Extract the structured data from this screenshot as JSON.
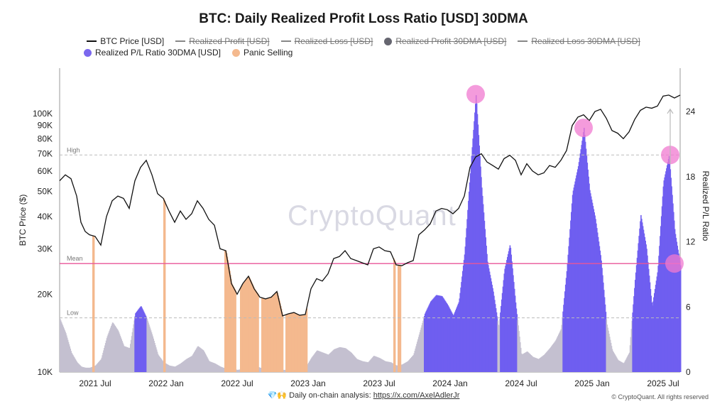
{
  "chart_data": {
    "type": "bar",
    "title": "BTC: Daily Realized Profit Loss Ratio [USD] 30DMA",
    "ylabel_left": "BTC Price ($)",
    "ylabel_right": "Realized P/L Ratio",
    "y_left_scale": "log",
    "y_left_range": [
      10000,
      150000
    ],
    "y_left_ticks": [
      "100K",
      "90K",
      "80K",
      "70K",
      "60K",
      "50K",
      "40K",
      "30K",
      "20K",
      "10K"
    ],
    "y_left_tick_values": [
      100000,
      90000,
      80000,
      70000,
      60000,
      50000,
      40000,
      30000,
      20000,
      10000
    ],
    "y_right_range": [
      0,
      28
    ],
    "y_right_ticks": [
      "24",
      "18",
      "12",
      "6",
      "0"
    ],
    "y_right_tick_values": [
      24,
      18,
      12,
      6,
      0
    ],
    "x_range": [
      2021.25,
      2025.62
    ],
    "x_ticks": [
      "2021 Jul",
      "2022 Jan",
      "2022 Jul",
      "2023 Jan",
      "2023 Jul",
      "2024 Jan",
      "2024 Jul",
      "2025 Jan",
      "2025 Jul"
    ],
    "x_tick_values": [
      2021.5,
      2022.0,
      2022.5,
      2023.0,
      2023.5,
      2024.0,
      2024.5,
      2025.0,
      2025.5
    ],
    "reference_lines": [
      {
        "label": "High",
        "value": 20
      },
      {
        "label": "Mean",
        "value": 10
      },
      {
        "label": "Low",
        "value": 5
      }
    ],
    "legend": [
      {
        "name": "BTC Price [USD]",
        "kind": "line",
        "color": "#111111",
        "active": true
      },
      {
        "name": "Realized Profit [USD]",
        "kind": "line",
        "color": "#888888",
        "active": false
      },
      {
        "name": "Realized Loss [USD]",
        "kind": "line",
        "color": "#888888",
        "active": false
      },
      {
        "name": "Realized Profit 30DMA [USD]",
        "kind": "dot",
        "color": "#666670",
        "active": false
      },
      {
        "name": "Realized Loss 30DMA [USD]",
        "kind": "line",
        "color": "#888888",
        "active": false
      },
      {
        "name": "Realized P/L Ratio 30DMA [USD]",
        "kind": "dot",
        "color": "#7b68ee",
        "active": true
      },
      {
        "name": "Panic Selling",
        "kind": "dot",
        "color": "#f4b98e",
        "active": true
      }
    ],
    "colors": {
      "price": "#111111",
      "ratio_low": "#c4c0d0",
      "ratio_high": "#6f5ef0",
      "panic": "#f4b98e",
      "ref_line": "#bbbbbb",
      "mean_line": "#e8559a",
      "highlight": "#f07ad0"
    },
    "price_series": [
      [
        2021.25,
        55000
      ],
      [
        2021.29,
        58000
      ],
      [
        2021.33,
        56000
      ],
      [
        2021.37,
        48000
      ],
      [
        2021.4,
        38000
      ],
      [
        2021.43,
        35000
      ],
      [
        2021.46,
        34000
      ],
      [
        2021.5,
        33500
      ],
      [
        2021.54,
        31000
      ],
      [
        2021.58,
        40000
      ],
      [
        2021.62,
        46000
      ],
      [
        2021.66,
        48000
      ],
      [
        2021.7,
        47000
      ],
      [
        2021.74,
        43000
      ],
      [
        2021.78,
        55000
      ],
      [
        2021.82,
        62000
      ],
      [
        2021.86,
        66000
      ],
      [
        2021.9,
        58000
      ],
      [
        2021.94,
        49000
      ],
      [
        2021.98,
        47000
      ],
      [
        2022.02,
        42000
      ],
      [
        2022.06,
        38000
      ],
      [
        2022.1,
        42000
      ],
      [
        2022.14,
        39000
      ],
      [
        2022.18,
        41000
      ],
      [
        2022.22,
        46000
      ],
      [
        2022.26,
        43000
      ],
      [
        2022.3,
        39000
      ],
      [
        2022.34,
        37000
      ],
      [
        2022.38,
        30000
      ],
      [
        2022.42,
        29500
      ],
      [
        2022.46,
        22000
      ],
      [
        2022.5,
        20000
      ],
      [
        2022.54,
        22000
      ],
      [
        2022.58,
        23500
      ],
      [
        2022.62,
        21000
      ],
      [
        2022.66,
        19500
      ],
      [
        2022.7,
        19200
      ],
      [
        2022.74,
        19500
      ],
      [
        2022.78,
        20500
      ],
      [
        2022.82,
        16500
      ],
      [
        2022.86,
        16800
      ],
      [
        2022.9,
        17000
      ],
      [
        2022.94,
        16600
      ],
      [
        2022.98,
        16700
      ],
      [
        2023.02,
        21000
      ],
      [
        2023.06,
        23000
      ],
      [
        2023.1,
        22500
      ],
      [
        2023.14,
        24000
      ],
      [
        2023.18,
        27500
      ],
      [
        2023.22,
        28000
      ],
      [
        2023.26,
        29500
      ],
      [
        2023.3,
        27500
      ],
      [
        2023.34,
        27000
      ],
      [
        2023.38,
        26500
      ],
      [
        2023.42,
        26000
      ],
      [
        2023.46,
        30000
      ],
      [
        2023.5,
        30500
      ],
      [
        2023.54,
        29500
      ],
      [
        2023.58,
        29200
      ],
      [
        2023.62,
        26000
      ],
      [
        2023.66,
        25800
      ],
      [
        2023.7,
        26500
      ],
      [
        2023.74,
        27000
      ],
      [
        2023.78,
        34000
      ],
      [
        2023.82,
        35500
      ],
      [
        2023.86,
        37500
      ],
      [
        2023.9,
        42000
      ],
      [
        2023.94,
        43000
      ],
      [
        2023.98,
        42500
      ],
      [
        2024.02,
        41000
      ],
      [
        2024.06,
        43000
      ],
      [
        2024.1,
        48000
      ],
      [
        2024.14,
        62000
      ],
      [
        2024.18,
        68000
      ],
      [
        2024.22,
        70000
      ],
      [
        2024.26,
        65000
      ],
      [
        2024.3,
        63000
      ],
      [
        2024.34,
        61000
      ],
      [
        2024.38,
        67000
      ],
      [
        2024.42,
        69000
      ],
      [
        2024.46,
        66000
      ],
      [
        2024.5,
        58000
      ],
      [
        2024.54,
        64000
      ],
      [
        2024.58,
        60000
      ],
      [
        2024.62,
        58000
      ],
      [
        2024.66,
        59000
      ],
      [
        2024.7,
        63000
      ],
      [
        2024.74,
        62000
      ],
      [
        2024.78,
        66000
      ],
      [
        2024.82,
        72000
      ],
      [
        2024.86,
        90000
      ],
      [
        2024.9,
        97000
      ],
      [
        2024.94,
        99000
      ],
      [
        2024.98,
        94000
      ],
      [
        2025.02,
        102000
      ],
      [
        2025.06,
        104000
      ],
      [
        2025.1,
        96000
      ],
      [
        2025.14,
        86000
      ],
      [
        2025.18,
        84000
      ],
      [
        2025.22,
        80000
      ],
      [
        2025.26,
        85000
      ],
      [
        2025.3,
        95000
      ],
      [
        2025.34,
        103000
      ],
      [
        2025.38,
        106000
      ],
      [
        2025.42,
        105000
      ],
      [
        2025.46,
        107000
      ],
      [
        2025.5,
        117000
      ],
      [
        2025.54,
        118000
      ],
      [
        2025.58,
        115000
      ],
      [
        2025.62,
        118000
      ]
    ],
    "ratio_series": [
      [
        2021.25,
        4.9
      ],
      [
        2021.29,
        3.6
      ],
      [
        2021.33,
        1.8
      ],
      [
        2021.37,
        0.9
      ],
      [
        2021.4,
        0.5
      ],
      [
        2021.43,
        0.4
      ],
      [
        2021.46,
        0.4
      ],
      [
        2021.5,
        0.6
      ],
      [
        2021.54,
        1.2
      ],
      [
        2021.58,
        3.2
      ],
      [
        2021.62,
        4.6
      ],
      [
        2021.66,
        3.8
      ],
      [
        2021.7,
        2.4
      ],
      [
        2021.74,
        2.2
      ],
      [
        2021.78,
        5.4
      ],
      [
        2021.82,
        6.1
      ],
      [
        2021.86,
        5.0
      ],
      [
        2021.9,
        3.4
      ],
      [
        2021.94,
        1.6
      ],
      [
        2021.98,
        0.9
      ],
      [
        2022.02,
        0.6
      ],
      [
        2022.06,
        0.5
      ],
      [
        2022.1,
        0.8
      ],
      [
        2022.14,
        1.2
      ],
      [
        2022.18,
        1.5
      ],
      [
        2022.22,
        2.4
      ],
      [
        2022.26,
        2.0
      ],
      [
        2022.3,
        1.0
      ],
      [
        2022.34,
        0.8
      ],
      [
        2022.38,
        0.5
      ],
      [
        2022.42,
        0.3
      ],
      [
        2022.46,
        0.3
      ],
      [
        2022.5,
        0.2
      ],
      [
        2022.54,
        0.3
      ],
      [
        2022.58,
        0.5
      ],
      [
        2022.62,
        0.6
      ],
      [
        2022.66,
        0.4
      ],
      [
        2022.7,
        0.3
      ],
      [
        2022.74,
        0.3
      ],
      [
        2022.78,
        0.4
      ],
      [
        2022.82,
        0.2
      ],
      [
        2022.86,
        0.2
      ],
      [
        2022.9,
        0.3
      ],
      [
        2022.94,
        0.3
      ],
      [
        2022.98,
        0.4
      ],
      [
        2023.02,
        1.3
      ],
      [
        2023.06,
        2.0
      ],
      [
        2023.1,
        1.8
      ],
      [
        2023.14,
        1.6
      ],
      [
        2023.18,
        2.1
      ],
      [
        2023.22,
        2.3
      ],
      [
        2023.26,
        2.2
      ],
      [
        2023.3,
        1.8
      ],
      [
        2023.34,
        1.2
      ],
      [
        2023.38,
        1.0
      ],
      [
        2023.42,
        0.9
      ],
      [
        2023.46,
        1.5
      ],
      [
        2023.5,
        1.3
      ],
      [
        2023.54,
        1.0
      ],
      [
        2023.58,
        0.9
      ],
      [
        2023.62,
        0.6
      ],
      [
        2023.66,
        0.7
      ],
      [
        2023.7,
        1.0
      ],
      [
        2023.74,
        1.6
      ],
      [
        2023.78,
        3.5
      ],
      [
        2023.82,
        5.4
      ],
      [
        2023.86,
        6.5
      ],
      [
        2023.9,
        7.1
      ],
      [
        2023.94,
        7.0
      ],
      [
        2023.98,
        6.2
      ],
      [
        2024.02,
        5.2
      ],
      [
        2024.06,
        6.5
      ],
      [
        2024.1,
        11.0
      ],
      [
        2024.14,
        18.5
      ],
      [
        2024.18,
        25.6
      ],
      [
        2024.22,
        17.0
      ],
      [
        2024.26,
        10.2
      ],
      [
        2024.3,
        7.5
      ],
      [
        2024.34,
        4.1
      ],
      [
        2024.38,
        9.4
      ],
      [
        2024.42,
        11.8
      ],
      [
        2024.46,
        6.2
      ],
      [
        2024.5,
        1.6
      ],
      [
        2024.54,
        1.9
      ],
      [
        2024.58,
        1.4
      ],
      [
        2024.62,
        1.2
      ],
      [
        2024.66,
        1.6
      ],
      [
        2024.7,
        2.2
      ],
      [
        2024.74,
        2.9
      ],
      [
        2024.78,
        4.0
      ],
      [
        2024.82,
        9.5
      ],
      [
        2024.86,
        16.5
      ],
      [
        2024.9,
        19.0
      ],
      [
        2024.94,
        22.5
      ],
      [
        2024.98,
        16.8
      ],
      [
        2025.02,
        14.2
      ],
      [
        2025.06,
        10.5
      ],
      [
        2025.1,
        4.5
      ],
      [
        2025.14,
        2.0
      ],
      [
        2025.18,
        1.1
      ],
      [
        2025.22,
        0.8
      ],
      [
        2025.26,
        1.8
      ],
      [
        2025.3,
        8.5
      ],
      [
        2025.34,
        14.5
      ],
      [
        2025.38,
        11.5
      ],
      [
        2025.42,
        6.0
      ],
      [
        2025.46,
        9.4
      ],
      [
        2025.5,
        17.5
      ],
      [
        2025.54,
        20.0
      ],
      [
        2025.58,
        13.0
      ],
      [
        2025.62,
        9.8
      ]
    ],
    "panic_periods": [
      [
        2021.48,
        2021.49
      ],
      [
        2021.98,
        2021.99
      ],
      [
        2022.41,
        2022.49
      ],
      [
        2022.52,
        2022.65
      ],
      [
        2022.67,
        2022.82
      ],
      [
        2022.84,
        2022.99
      ],
      [
        2023.6,
        2023.61
      ],
      [
        2023.63,
        2023.65
      ]
    ],
    "highlights": [
      {
        "x": 2024.18,
        "y": 25.6
      },
      {
        "x": 2024.94,
        "y": 22.5
      },
      {
        "x": 2025.55,
        "y": 20.0
      },
      {
        "x": 2025.58,
        "y": 10.0
      }
    ]
  },
  "watermark": "CryptoQuant",
  "footer": {
    "emoji": "💎🙌",
    "text": "Daily on-chain analysis: ",
    "link": "https://x.com/AxelAdlerJr"
  },
  "copyright": "© CryptoQuant. All rights reserved"
}
